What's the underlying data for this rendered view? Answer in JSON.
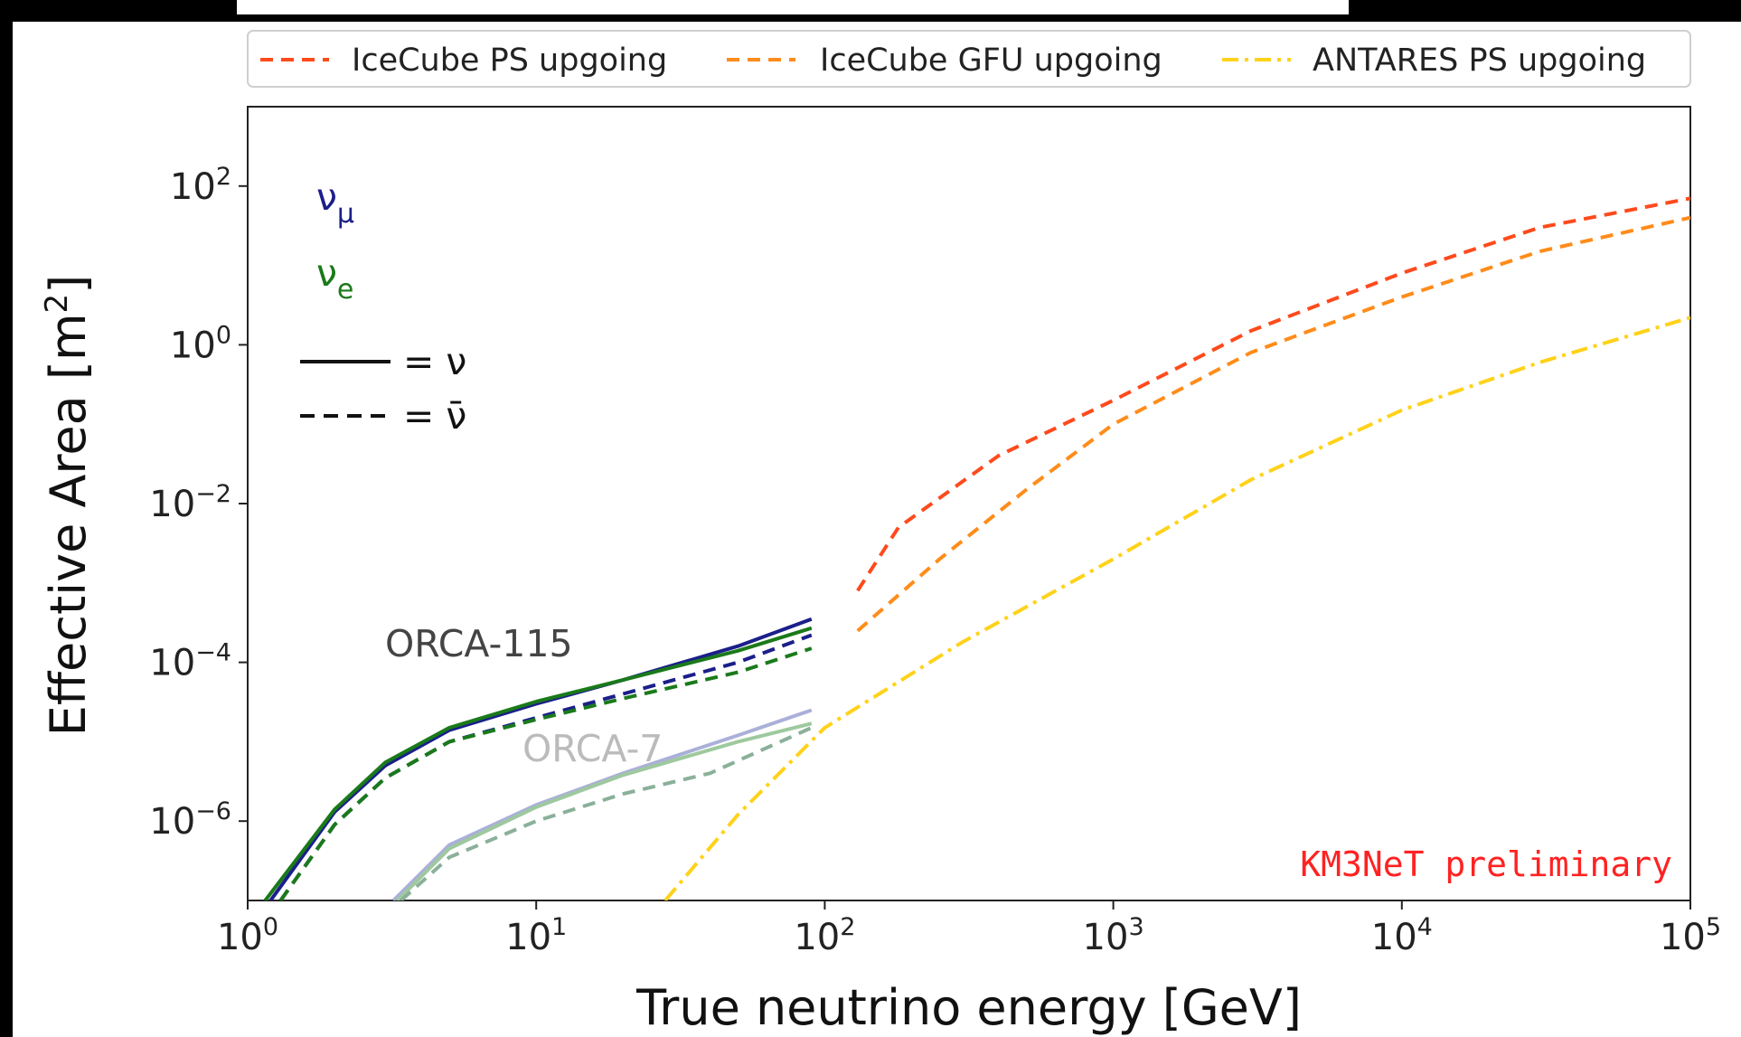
{
  "chart_data": {
    "type": "line",
    "xscale": "log",
    "yscale": "log",
    "xlim": [
      1,
      100000
    ],
    "ylim": [
      1e-07,
      1000
    ],
    "xlabel": "True neutrino energy [GeV]",
    "ylabel": "Effective Area [m²]",
    "ylabel_main": "Effective Area [m",
    "ylabel_sup": "2",
    "ylabel_close": "]",
    "x_ticks": [
      {
        "value": 1,
        "base": "10",
        "exp": "0"
      },
      {
        "value": 10,
        "base": "10",
        "exp": "1"
      },
      {
        "value": 100,
        "base": "10",
        "exp": "2"
      },
      {
        "value": 1000,
        "base": "10",
        "exp": "3"
      },
      {
        "value": 10000,
        "base": "10",
        "exp": "4"
      },
      {
        "value": 100000,
        "base": "10",
        "exp": "5"
      }
    ],
    "y_ticks": [
      {
        "value": 1e-06,
        "base": "10",
        "exp": "−6"
      },
      {
        "value": 0.0001,
        "base": "10",
        "exp": "−4"
      },
      {
        "value": 0.01,
        "base": "10",
        "exp": "−2"
      },
      {
        "value": 1,
        "base": "10",
        "exp": "0"
      },
      {
        "value": 100,
        "base": "10",
        "exp": "2"
      }
    ],
    "legend": {
      "placement": "top, above plot",
      "entries": [
        {
          "name": "IceCube PS upgoing",
          "color": "#ff4a1c",
          "dash": "dashed"
        },
        {
          "name": "IceCube GFU upgoing",
          "color": "#ff8c1a",
          "dash": "dashed"
        },
        {
          "name": "ANTARES PS upgoing",
          "color": "#ffd21a",
          "dash": "dashdot"
        }
      ]
    },
    "annotations": {
      "numu_symbol": "ν",
      "numu_sub": "μ",
      "nue_symbol": "ν",
      "nue_sub": "e",
      "solid_key": "= ν",
      "dashed_key": "= ν̄",
      "orca115": "ORCA-115",
      "orca7": "ORCA-7",
      "preliminary": "KM3NeT preliminary"
    },
    "series": [
      {
        "name": "IceCube PS upgoing",
        "color": "#ff4a1c",
        "dash": "dashed",
        "x": [
          130,
          180,
          400,
          1000,
          3000,
          10000,
          30000,
          100000
        ],
        "y": [
          0.0008,
          0.005,
          0.04,
          0.2,
          1.5,
          8,
          30,
          70
        ]
      },
      {
        "name": "IceCube GFU upgoing",
        "color": "#ff8c1a",
        "dash": "dashed",
        "x": [
          130,
          250,
          500,
          1000,
          3000,
          10000,
          30000,
          100000
        ],
        "y": [
          0.00025,
          0.002,
          0.015,
          0.1,
          0.8,
          4,
          15,
          40
        ]
      },
      {
        "name": "ANTARES PS upgoing",
        "color": "#ffd21a",
        "dash": "dashdot",
        "x": [
          28,
          50,
          100,
          300,
          1000,
          3000,
          10000,
          30000,
          100000
        ],
        "y": [
          1e-07,
          1.2e-06,
          1.5e-05,
          0.00018,
          0.002,
          0.02,
          0.15,
          0.6,
          2.2
        ]
      },
      {
        "color": "#1b1f8a",
        "dash": "solid",
        "x": [
          1.2,
          2,
          3,
          5,
          10,
          20,
          50,
          90
        ],
        "y": [
          1e-07,
          1.3e-06,
          5e-06,
          1.4e-05,
          3e-05,
          6e-05,
          0.00016,
          0.00035
        ]
      },
      {
        "color": "#1a7a1a",
        "dash": "solid",
        "x": [
          1.15,
          2,
          3,
          5,
          10,
          20,
          50,
          90
        ],
        "y": [
          1e-07,
          1.4e-06,
          5.5e-06,
          1.5e-05,
          3.2e-05,
          6e-05,
          0.00014,
          0.00027
        ]
      },
      {
        "color": "#1b1f8a",
        "dash": "dashed",
        "x": [
          1.3,
          2,
          3,
          5,
          10,
          20,
          50,
          90
        ],
        "y": [
          1e-07,
          9e-07,
          3.5e-06,
          1e-05,
          2e-05,
          4e-05,
          0.0001,
          0.00022
        ]
      },
      {
        "color": "#1a7a1a",
        "dash": "dashed",
        "x": [
          1.3,
          2,
          3,
          5,
          10,
          20,
          50,
          90
        ],
        "y": [
          1e-07,
          9e-07,
          3.5e-06,
          1e-05,
          1.9e-05,
          3.5e-05,
          7.5e-05,
          0.00015
        ]
      },
      {
        "color": "#aab0d8",
        "dash": "solid",
        "x": [
          3.2,
          5,
          10,
          20,
          50,
          90
        ],
        "y": [
          1e-07,
          5e-07,
          1.6e-06,
          4e-06,
          1.2e-05,
          2.5e-05
        ]
      },
      {
        "color": "#9ec99e",
        "dash": "solid",
        "x": [
          3.3,
          5,
          10,
          20,
          50,
          90
        ],
        "y": [
          1e-07,
          4.5e-07,
          1.5e-06,
          3.8e-06,
          1e-05,
          1.7e-05
        ]
      },
      {
        "color": "#8ab09a",
        "dash": "dashed",
        "x": [
          3.4,
          5,
          10,
          20,
          40,
          90
        ],
        "y": [
          1e-07,
          3.5e-07,
          1e-06,
          2.2e-06,
          4e-06,
          1.5e-05
        ]
      }
    ]
  }
}
